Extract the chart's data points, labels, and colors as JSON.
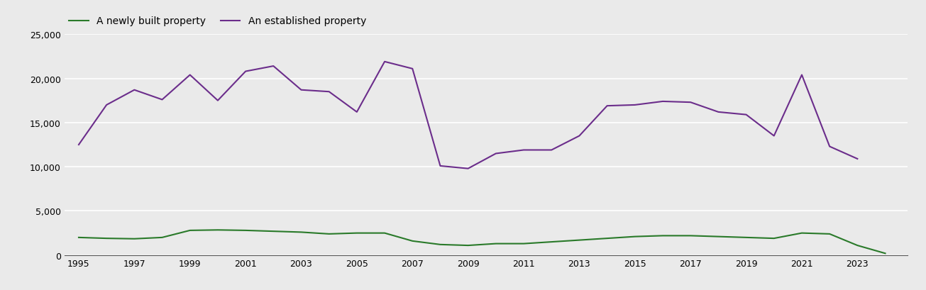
{
  "years": [
    1995,
    1996,
    1997,
    1998,
    1999,
    2000,
    2001,
    2002,
    2003,
    2004,
    2005,
    2006,
    2007,
    2008,
    2009,
    2010,
    2011,
    2012,
    2013,
    2014,
    2015,
    2016,
    2017,
    2018,
    2019,
    2020,
    2021,
    2022,
    2023,
    2024
  ],
  "new_homes": [
    2000,
    1900,
    1850,
    2000,
    2800,
    2850,
    2800,
    2700,
    2600,
    2400,
    2500,
    2500,
    1600,
    1200,
    1100,
    1300,
    1300,
    1500,
    1700,
    1900,
    2100,
    2200,
    2200,
    2100,
    2000,
    1900,
    2500,
    2400,
    1100,
    200
  ],
  "established_homes": [
    12500,
    17000,
    18700,
    17600,
    20400,
    17500,
    20800,
    21400,
    18700,
    18500,
    16200,
    21900,
    21100,
    10100,
    9800,
    11500,
    11900,
    11900,
    13500,
    16900,
    17000,
    17400,
    17300,
    16200,
    15900,
    13500,
    20400,
    12300,
    10900,
    null
  ],
  "new_color": "#2a7a2a",
  "established_color": "#6b2d8b",
  "legend_new": "A newly built property",
  "legend_established": "An established property",
  "ylim": [
    0,
    25000
  ],
  "yticks": [
    0,
    5000,
    10000,
    15000,
    20000,
    25000
  ],
  "background_color": "#eaeaea",
  "grid_color": "#ffffff",
  "line_width": 1.5,
  "legend_fontsize": 10,
  "tick_fontsize": 9
}
